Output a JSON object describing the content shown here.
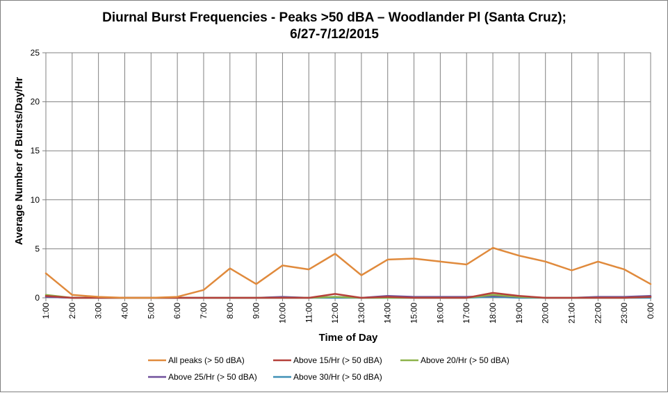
{
  "chart_data": {
    "type": "line",
    "title_line1": "Diurnal Burst Frequencies - Peaks >50 dBA – Woodlander Pl (Santa Cruz);",
    "title_line2": "6/27-7/12/2015",
    "xlabel": "Time of Day",
    "ylabel": "Average Number of Bursts/Day/Hr",
    "ylim": [
      0,
      25
    ],
    "yticks": [
      "0",
      "5",
      "10",
      "15",
      "20",
      "25"
    ],
    "ytick_values": [
      0,
      5,
      10,
      15,
      20,
      25
    ],
    "categories": [
      "1:00",
      "2:00",
      "3:00",
      "4:00",
      "5:00",
      "6:00",
      "7:00",
      "8:00",
      "9:00",
      "10:00",
      "11:00",
      "12:00",
      "13:00",
      "14:00",
      "15:00",
      "16:00",
      "17:00",
      "18:00",
      "19:00",
      "20:00",
      "21:00",
      "22:00",
      "23:00",
      "0:00"
    ],
    "grid": true,
    "legend_position": "bottom",
    "series": [
      {
        "name": "All peaks (> 50 dBA)",
        "color": "#e08a3c",
        "values": [
          2.5,
          0.3,
          0.1,
          0,
          0,
          0.1,
          0.8,
          3.0,
          1.4,
          3.3,
          2.9,
          4.5,
          2.3,
          3.9,
          4.0,
          3.7,
          3.4,
          5.1,
          4.3,
          3.7,
          2.8,
          3.7,
          2.9,
          1.4
        ]
      },
      {
        "name": "Above 15/Hr (> 50 dBA)",
        "color": "#b5403a",
        "values": [
          0.2,
          0,
          0,
          0,
          0,
          0,
          0,
          0,
          0,
          0,
          0,
          0.4,
          0,
          0.1,
          0,
          0,
          0,
          0.5,
          0.2,
          0,
          0,
          0,
          0,
          0.1
        ]
      },
      {
        "name": "Above 20/Hr (> 50 dBA)",
        "color": "#8db34a",
        "values": [
          0.3,
          0,
          0,
          0,
          0,
          0,
          0,
          0,
          0,
          0,
          0,
          0.1,
          0,
          0,
          0,
          0,
          0,
          0.3,
          0.1,
          0,
          0,
          0,
          0,
          0.1
        ]
      },
      {
        "name": "Above 25/Hr (> 50 dBA)",
        "color": "#6f4f9a",
        "values": [
          0.1,
          0,
          0,
          0,
          0,
          0,
          0,
          0,
          0,
          0.1,
          0,
          0.1,
          0,
          0.2,
          0.1,
          0.1,
          0.1,
          0.2,
          0.1,
          0,
          0,
          0.1,
          0.1,
          0.2
        ]
      },
      {
        "name": "Above 30/Hr (> 50 dBA)",
        "color": "#3d8fb5",
        "values": [
          0.1,
          0,
          0,
          0,
          0,
          0,
          0,
          0,
          0,
          0,
          0,
          0,
          0,
          0,
          0,
          0,
          0,
          0.1,
          0,
          0,
          0,
          0,
          0,
          0
        ]
      }
    ]
  }
}
